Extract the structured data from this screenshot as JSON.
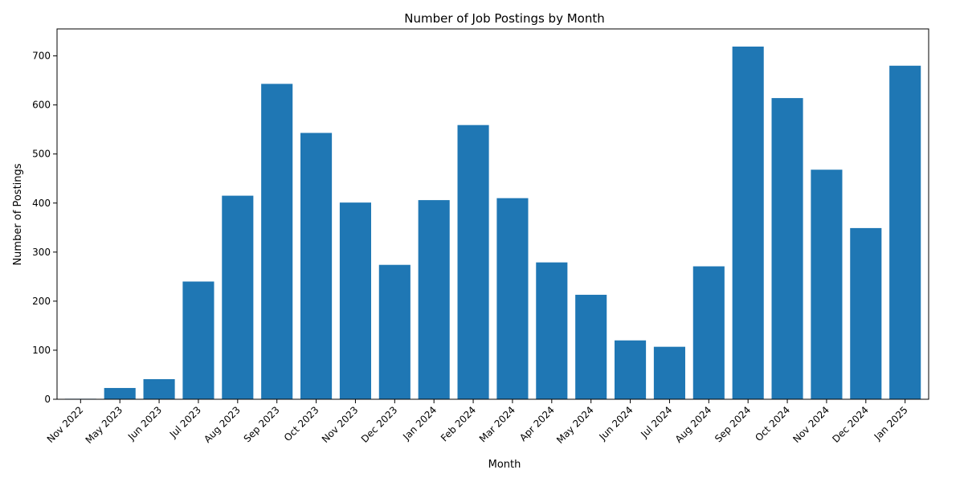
{
  "chart_data": {
    "type": "bar",
    "title": "Number of Job Postings by Month",
    "xlabel": "Month",
    "ylabel": "Number of Postings",
    "categories": [
      "Nov 2022",
      "May 2023",
      "Jun 2023",
      "Jul 2023",
      "Aug 2023",
      "Sep 2023",
      "Oct 2023",
      "Nov 2023",
      "Dec 2023",
      "Jan 2024",
      "Feb 2024",
      "Mar 2024",
      "Apr 2024",
      "May 2024",
      "Jun 2024",
      "Jul 2024",
      "Aug 2024",
      "Sep 2024",
      "Oct 2024",
      "Nov 2024",
      "Dec 2024",
      "Jan 2025"
    ],
    "values": [
      1,
      23,
      41,
      240,
      415,
      643,
      543,
      401,
      274,
      406,
      559,
      410,
      279,
      213,
      120,
      107,
      271,
      719,
      614,
      468,
      349,
      680
    ],
    "ylim": [
      0,
      755
    ],
    "yticks": [
      0,
      100,
      200,
      300,
      400,
      500,
      600,
      700
    ],
    "grid": false,
    "legend": "none",
    "bar_color": "#1f77b4"
  }
}
